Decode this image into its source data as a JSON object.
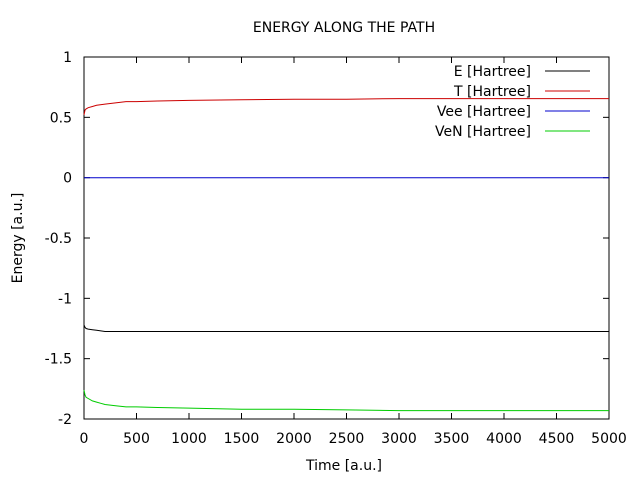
{
  "chart_data": {
    "type": "line",
    "title": "ENERGY ALONG THE PATH",
    "xlabel": "Time [a.u.]",
    "ylabel": "Energy [a.u.]",
    "xlim": [
      0,
      5000
    ],
    "ylim": [
      -2,
      1
    ],
    "xticks": [
      0,
      500,
      1000,
      1500,
      2000,
      2500,
      3000,
      3500,
      4000,
      4500,
      5000
    ],
    "yticks": [
      1,
      0.5,
      0,
      -0.5,
      -1,
      -1.5,
      -2
    ],
    "legend_position": "top-right",
    "grid": false,
    "series": [
      {
        "name": "E [Hartree]",
        "color": "#000000",
        "x": [
          0,
          10,
          20,
          40,
          80,
          120,
          160,
          200,
          300,
          400,
          500,
          600,
          700,
          800,
          1000,
          1500,
          2000,
          2500,
          3000,
          3500,
          4000,
          4500,
          5000
        ],
        "y": [
          -1.22,
          -1.24,
          -1.25,
          -1.255,
          -1.26,
          -1.265,
          -1.27,
          -1.275,
          -1.275,
          -1.275,
          -1.275,
          -1.275,
          -1.275,
          -1.275,
          -1.275,
          -1.275,
          -1.275,
          -1.275,
          -1.275,
          -1.275,
          -1.275,
          -1.275,
          -1.275
        ]
      },
      {
        "name": "T [Hartree]",
        "color": "#cc0000",
        "x": [
          0,
          10,
          20,
          40,
          80,
          120,
          200,
          300,
          400,
          500,
          700,
          1000,
          1500,
          2000,
          2500,
          3000,
          3500,
          4000,
          4500,
          5000
        ],
        "y": [
          0.52,
          0.56,
          0.57,
          0.58,
          0.59,
          0.6,
          0.61,
          0.62,
          0.63,
          0.63,
          0.635,
          0.64,
          0.645,
          0.65,
          0.65,
          0.655,
          0.655,
          0.655,
          0.655,
          0.655
        ]
      },
      {
        "name": "Vee [Hartree]",
        "color": "#0000cc",
        "x": [
          0,
          5000
        ],
        "y": [
          0,
          0
        ]
      },
      {
        "name": "VeN [Hartree]",
        "color": "#00cc00",
        "x": [
          0,
          10,
          20,
          40,
          80,
          120,
          160,
          200,
          300,
          400,
          500,
          700,
          1000,
          1500,
          2000,
          2500,
          3000,
          3500,
          4000,
          4500,
          5000
        ],
        "y": [
          -1.76,
          -1.8,
          -1.82,
          -1.83,
          -1.85,
          -1.86,
          -1.87,
          -1.88,
          -1.89,
          -1.9,
          -1.9,
          -1.905,
          -1.91,
          -1.92,
          -1.92,
          -1.925,
          -1.93,
          -1.93,
          -1.93,
          -1.93,
          -1.93
        ]
      }
    ]
  }
}
